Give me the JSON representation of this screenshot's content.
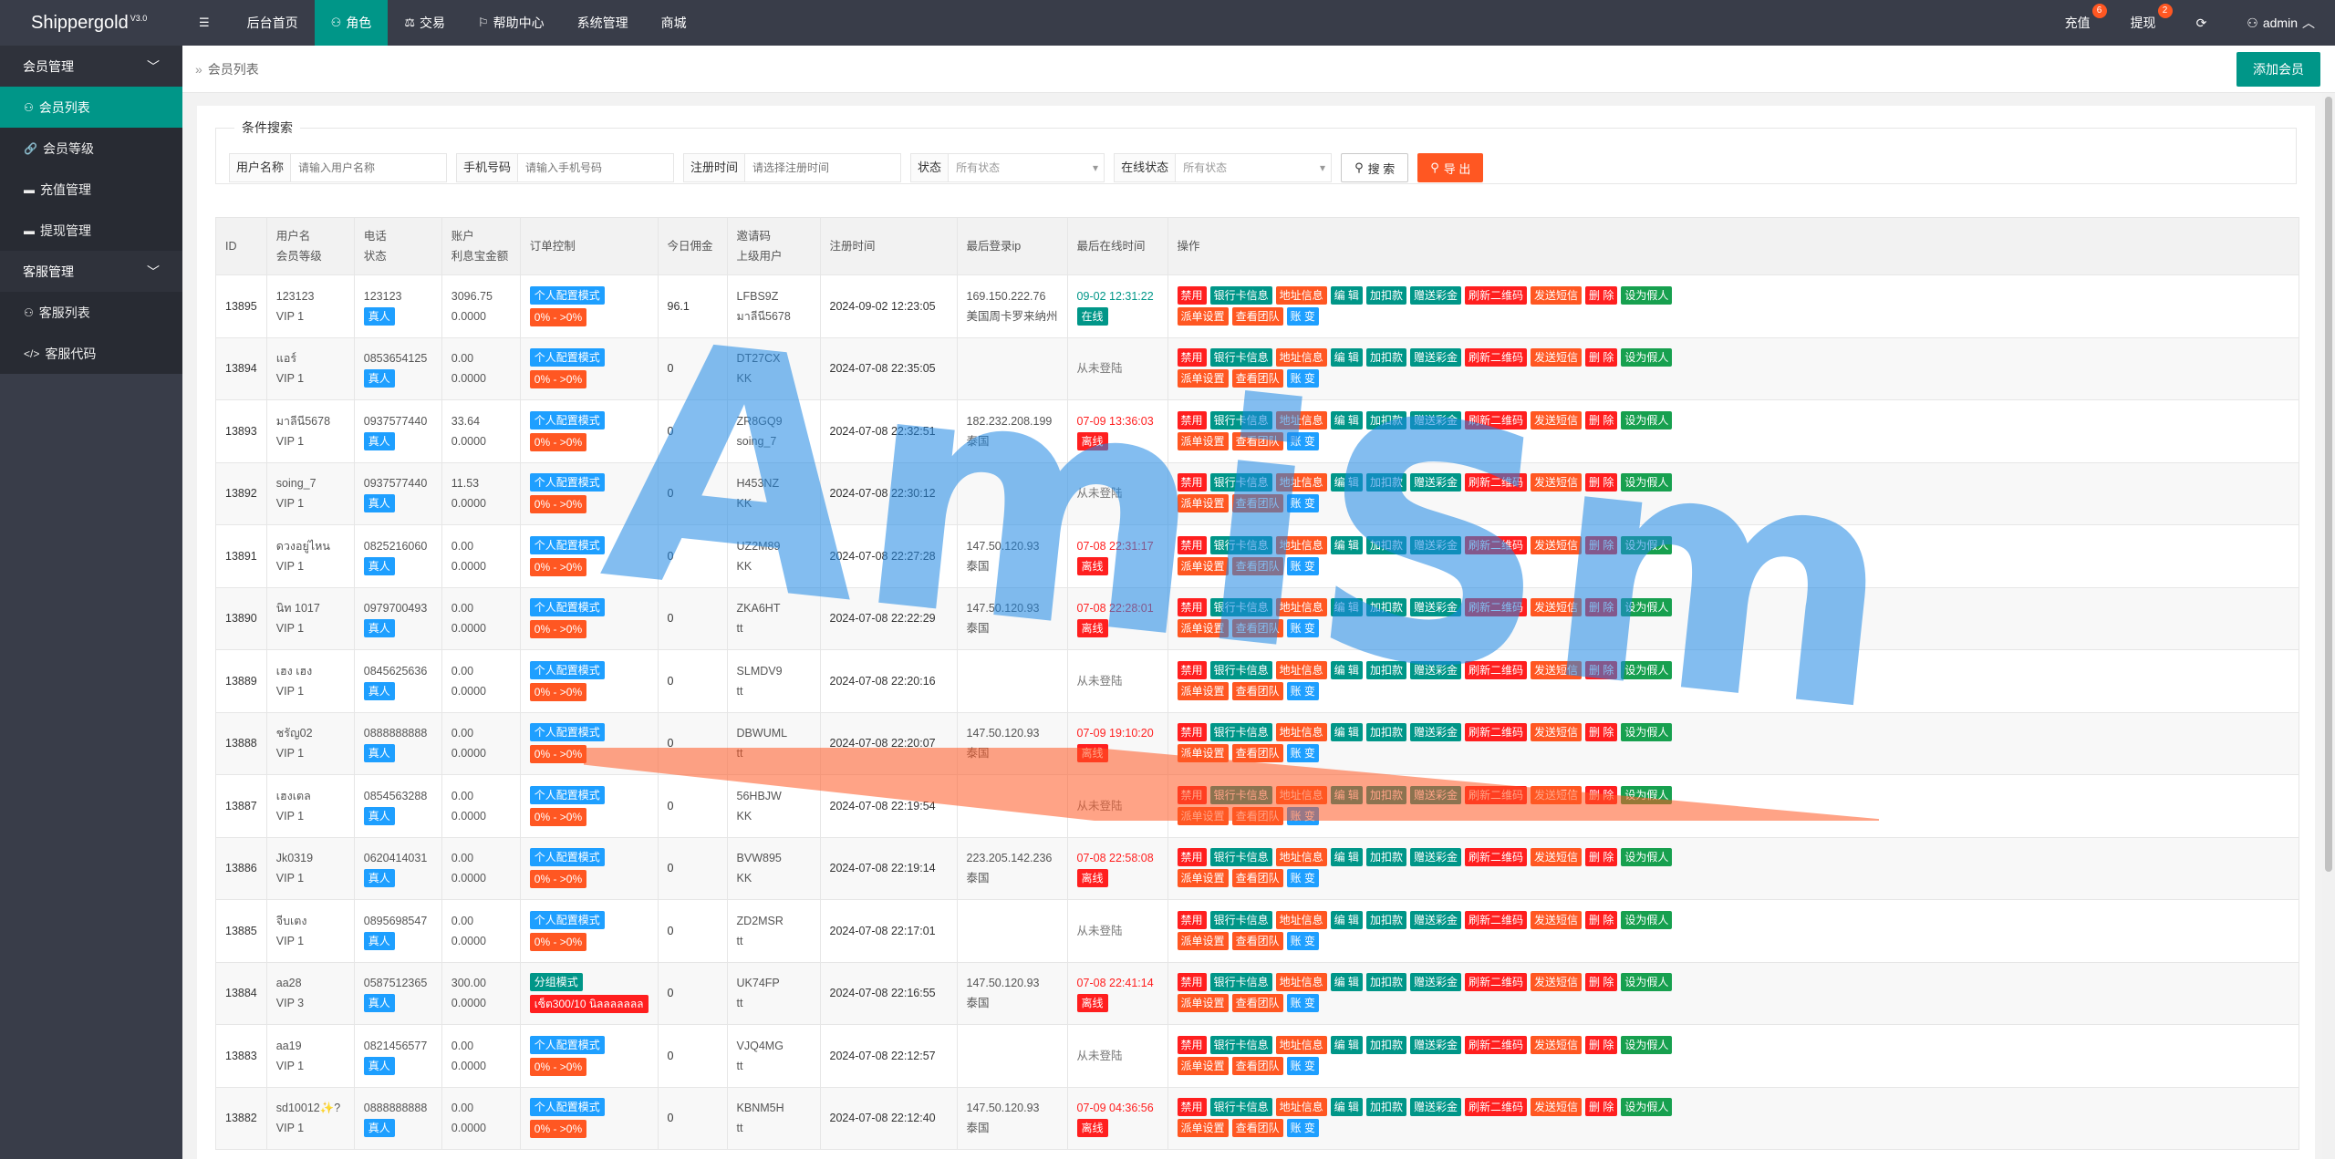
{
  "app": {
    "name": "Shippergold",
    "version": "V3.0"
  },
  "topnav": [
    {
      "key": "menu",
      "label": "",
      "icon": "hamburger-icon"
    },
    {
      "key": "home",
      "label": "后台首页",
      "icon": ""
    },
    {
      "key": "role",
      "label": "角色",
      "icon": "user-icon",
      "active": true
    },
    {
      "key": "trade",
      "label": "交易",
      "icon": "scale-icon"
    },
    {
      "key": "help",
      "label": "帮助中心",
      "icon": "flag-icon"
    },
    {
      "key": "system",
      "label": "系统管理",
      "icon": ""
    },
    {
      "key": "shop",
      "label": "商城",
      "icon": ""
    }
  ],
  "topright": {
    "recharge": {
      "label": "充值",
      "badge": "6"
    },
    "withdraw": {
      "label": "提现",
      "badge": "2"
    },
    "user": "admin"
  },
  "sidebar": {
    "group1": "会员管理",
    "group1_items": [
      {
        "label": "会员列表",
        "icon": "user-icon",
        "active": true
      },
      {
        "label": "会员等级",
        "icon": "link-icon"
      },
      {
        "label": "充值管理",
        "icon": "chat-icon"
      },
      {
        "label": "提现管理",
        "icon": "chat-icon"
      }
    ],
    "group2": "客服管理",
    "group2_items": [
      {
        "label": "客服列表",
        "icon": "users-icon"
      },
      {
        "label": "客服代码",
        "icon": "code-icon"
      }
    ]
  },
  "breadcrumb": "会员列表",
  "add_button": "添加会员",
  "search": {
    "legend": "条件搜索",
    "username_label": "用户名称",
    "username_placeholder": "请输入用户名称",
    "phone_label": "手机号码",
    "phone_placeholder": "请输入手机号码",
    "regtime_label": "注册时间",
    "regtime_placeholder": "请选择注册时间",
    "status_label": "状态",
    "status_value": "所有状态",
    "online_label": "在线状态",
    "online_value": "所有状态",
    "search_btn": "搜 索",
    "export_btn": "导 出"
  },
  "columns": {
    "id": "ID",
    "user1": "用户名",
    "user2": "会员等级",
    "phone1": "电话",
    "phone2": "状态",
    "acct1": "账户",
    "acct2": "利息宝金额",
    "order": "订单控制",
    "commission": "今日佣金",
    "invite1": "邀请码",
    "invite2": "上级用户",
    "regtime": "注册时间",
    "lastip": "最后登录ip",
    "lastonline": "最后在线时间",
    "ops": "操作"
  },
  "ops_labels": {
    "disable": "禁用",
    "bankcard": "银行卡信息",
    "address": "地址信息",
    "edit": "编 辑",
    "adjust": "加扣款",
    "gift": "赠送彩金",
    "qrcode": "刷新二维码",
    "sms": "发送短信",
    "delete": "删 除",
    "fake": "设为假人",
    "dispatch": "派单设置",
    "team": "查看团队",
    "account": "账 变"
  },
  "rows": [
    {
      "id": "13895",
      "username": "123123",
      "level": "VIP 1",
      "phone": "123123",
      "status": "真人",
      "balance": "3096.75",
      "interest": "0.0000",
      "mode": "个人配置模式",
      "mode_type": "blue",
      "pct": "0% - >0%",
      "pct_type": "orange",
      "commission": "96.1",
      "invite": "LFBS9Z",
      "parent": "มาลีนี5678",
      "regtime": "2024-09-02 12:23:05",
      "ip": "169.150.222.76",
      "ip_region": "美国周卡罗来纳州",
      "last_online": "09-02 12:31:22",
      "online_class": "green",
      "online_tag": "在线",
      "online_tag_type": "green"
    },
    {
      "id": "13894",
      "username": "แอร์",
      "level": "VIP 1",
      "phone": "0853654125",
      "status": "真人",
      "balance": "0.00",
      "interest": "0.0000",
      "mode": "个人配置模式",
      "mode_type": "blue",
      "pct": "0% - >0%",
      "pct_type": "orange",
      "commission": "0",
      "invite": "DT27CX",
      "parent": "KK",
      "regtime": "2024-07-08 22:35:05",
      "ip": "",
      "ip_region": "",
      "last_online": "从未登陆",
      "online_class": "dim",
      "online_tag": "",
      "online_tag_type": ""
    },
    {
      "id": "13893",
      "username": "มาลีนี5678",
      "level": "VIP 1",
      "phone": "0937577440",
      "status": "真人",
      "balance": "33.64",
      "interest": "0.0000",
      "mode": "个人配置模式",
      "mode_type": "blue",
      "pct": "0% - >0%",
      "pct_type": "orange",
      "commission": "0",
      "invite": "ZR8GQ9",
      "parent": "soing_7",
      "regtime": "2024-07-08 22:32:51",
      "ip": "182.232.208.199",
      "ip_region": "泰国",
      "last_online": "07-09 13:36:03",
      "online_class": "red",
      "online_tag": "离线",
      "online_tag_type": "red"
    },
    {
      "id": "13892",
      "username": "soing_7",
      "level": "VIP 1",
      "phone": "0937577440",
      "status": "真人",
      "balance": "11.53",
      "interest": "0.0000",
      "mode": "个人配置模式",
      "mode_type": "blue",
      "pct": "0% - >0%",
      "pct_type": "orange",
      "commission": "0",
      "invite": "H453NZ",
      "parent": "KK",
      "regtime": "2024-07-08 22:30:12",
      "ip": "",
      "ip_region": "",
      "last_online": "从未登陆",
      "online_class": "dim",
      "online_tag": "",
      "online_tag_type": ""
    },
    {
      "id": "13891",
      "username": "ดวงอยู่ไหน",
      "level": "VIP 1",
      "phone": "0825216060",
      "status": "真人",
      "balance": "0.00",
      "interest": "0.0000",
      "mode": "个人配置模式",
      "mode_type": "blue",
      "pct": "0% - >0%",
      "pct_type": "orange",
      "commission": "0",
      "invite": "UZ2M89",
      "parent": "KK",
      "regtime": "2024-07-08 22:27:28",
      "ip": "147.50.120.93",
      "ip_region": "泰国",
      "last_online": "07-08 22:31:17",
      "online_class": "red",
      "online_tag": "离线",
      "online_tag_type": "red"
    },
    {
      "id": "13890",
      "username": "นิท 1017",
      "level": "VIP 1",
      "phone": "0979700493",
      "status": "真人",
      "balance": "0.00",
      "interest": "0.0000",
      "mode": "个人配置模式",
      "mode_type": "blue",
      "pct": "0% - >0%",
      "pct_type": "orange",
      "commission": "0",
      "invite": "ZKA6HT",
      "parent": "tt",
      "regtime": "2024-07-08 22:22:29",
      "ip": "147.50.120.93",
      "ip_region": "泰国",
      "last_online": "07-08 22:28:01",
      "online_class": "red",
      "online_tag": "离线",
      "online_tag_type": "red"
    },
    {
      "id": "13889",
      "username": "เฮง เฮง",
      "level": "VIP 1",
      "phone": "0845625636",
      "status": "真人",
      "balance": "0.00",
      "interest": "0.0000",
      "mode": "个人配置模式",
      "mode_type": "blue",
      "pct": "0% - >0%",
      "pct_type": "orange",
      "commission": "0",
      "invite": "SLMDV9",
      "parent": "tt",
      "regtime": "2024-07-08 22:20:16",
      "ip": "",
      "ip_region": "",
      "last_online": "从未登陆",
      "online_class": "dim",
      "online_tag": "",
      "online_tag_type": ""
    },
    {
      "id": "13888",
      "username": "ชรัญ02",
      "level": "VIP 1",
      "phone": "0888888888",
      "status": "真人",
      "balance": "0.00",
      "interest": "0.0000",
      "mode": "个人配置模式",
      "mode_type": "blue",
      "pct": "0% - >0%",
      "pct_type": "orange",
      "commission": "0",
      "invite": "DBWUML",
      "parent": "tt",
      "regtime": "2024-07-08 22:20:07",
      "ip": "147.50.120.93",
      "ip_region": "泰国",
      "last_online": "07-09 19:10:20",
      "online_class": "red",
      "online_tag": "离线",
      "online_tag_type": "red"
    },
    {
      "id": "13887",
      "username": "เฮงเตล",
      "level": "VIP 1",
      "phone": "0854563288",
      "status": "真人",
      "balance": "0.00",
      "interest": "0.0000",
      "mode": "个人配置模式",
      "mode_type": "blue",
      "pct": "0% - >0%",
      "pct_type": "orange",
      "commission": "0",
      "invite": "56HBJW",
      "parent": "KK",
      "regtime": "2024-07-08 22:19:54",
      "ip": "",
      "ip_region": "",
      "last_online": "从未登陆",
      "online_class": "dim",
      "online_tag": "",
      "online_tag_type": ""
    },
    {
      "id": "13886",
      "username": "Jk0319",
      "level": "VIP 1",
      "phone": "0620414031",
      "status": "真人",
      "balance": "0.00",
      "interest": "0.0000",
      "mode": "个人配置模式",
      "mode_type": "blue",
      "pct": "0% - >0%",
      "pct_type": "orange",
      "commission": "0",
      "invite": "BVW895",
      "parent": "KK",
      "regtime": "2024-07-08 22:19:14",
      "ip": "223.205.142.236",
      "ip_region": "泰国",
      "last_online": "07-08 22:58:08",
      "online_class": "red",
      "online_tag": "离线",
      "online_tag_type": "red"
    },
    {
      "id": "13885",
      "username": "จีบเตง",
      "level": "VIP 1",
      "phone": "0895698547",
      "status": "真人",
      "balance": "0.00",
      "interest": "0.0000",
      "mode": "个人配置模式",
      "mode_type": "blue",
      "pct": "0% - >0%",
      "pct_type": "orange",
      "commission": "0",
      "invite": "ZD2MSR",
      "parent": "tt",
      "regtime": "2024-07-08 22:17:01",
      "ip": "",
      "ip_region": "",
      "last_online": "从未登陆",
      "online_class": "dim",
      "online_tag": "",
      "online_tag_type": ""
    },
    {
      "id": "13884",
      "username": "aa28",
      "level": "VIP 3",
      "phone": "0587512365",
      "status": "真人",
      "balance": "300.00",
      "interest": "0.0000",
      "mode": "分组模式",
      "mode_type": "green",
      "pct": "เซ็ต300/10 นิลลลลลลล",
      "pct_type": "red",
      "commission": "0",
      "invite": "UK74FP",
      "parent": "tt",
      "regtime": "2024-07-08 22:16:55",
      "ip": "147.50.120.93",
      "ip_region": "泰国",
      "last_online": "07-08 22:41:14",
      "online_class": "red",
      "online_tag": "离线",
      "online_tag_type": "red"
    },
    {
      "id": "13883",
      "username": "aa19",
      "level": "VIP 1",
      "phone": "0821456577",
      "status": "真人",
      "balance": "0.00",
      "interest": "0.0000",
      "mode": "个人配置模式",
      "mode_type": "blue",
      "pct": "0% - >0%",
      "pct_type": "orange",
      "commission": "0",
      "invite": "VJQ4MG",
      "parent": "tt",
      "regtime": "2024-07-08 22:12:57",
      "ip": "",
      "ip_region": "",
      "last_online": "从未登陆",
      "online_class": "dim",
      "online_tag": "",
      "online_tag_type": ""
    },
    {
      "id": "13882",
      "username": "sd10012✨?",
      "level": "VIP 1",
      "phone": "0888888888",
      "status": "真人",
      "balance": "0.00",
      "interest": "0.0000",
      "mode": "个人配置模式",
      "mode_type": "blue",
      "pct": "0% - >0%",
      "pct_type": "orange",
      "commission": "0",
      "invite": "KBNM5H",
      "parent": "tt",
      "regtime": "2024-07-08 22:12:40",
      "ip": "147.50.120.93",
      "ip_region": "泰国",
      "last_online": "07-09 04:36:56",
      "online_class": "red",
      "online_tag": "离线",
      "online_tag_type": "red"
    }
  ],
  "watermark": "AmiSms"
}
